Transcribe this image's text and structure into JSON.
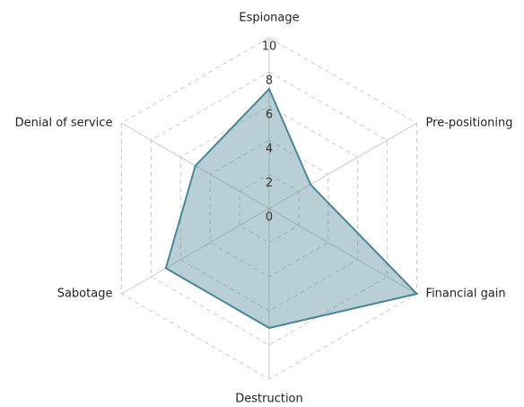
{
  "chart_data": {
    "type": "radar",
    "categories": [
      "Espionage",
      "Pre-positioning",
      "Financial gain",
      "Destruction",
      "Sabotage",
      "Denial of service"
    ],
    "values": [
      7,
      2.8,
      10,
      7,
      7,
      5
    ],
    "color": "#4a8796",
    "rlim": [
      0,
      10
    ],
    "rticks": [
      0,
      2,
      4,
      6,
      8,
      10
    ],
    "grid": true
  }
}
